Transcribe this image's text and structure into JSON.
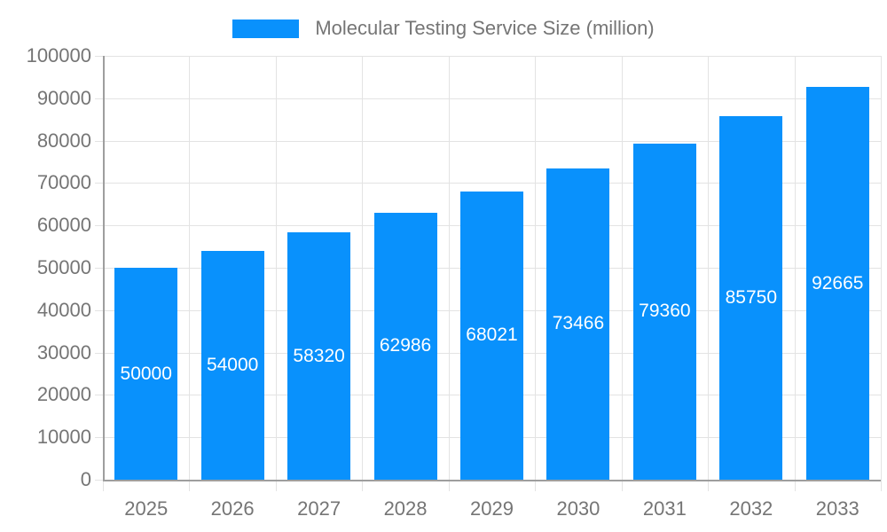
{
  "legend": {
    "label": "Molecular Testing Service Size (million)"
  },
  "chart_data": {
    "type": "bar",
    "title": "Molecular Testing Service Size (million)",
    "categories": [
      "2025",
      "2026",
      "2027",
      "2028",
      "2029",
      "2030",
      "2031",
      "2032",
      "2033"
    ],
    "values": [
      50000,
      54000,
      58320,
      62986,
      68021,
      73466,
      79360,
      85750,
      92665
    ],
    "xlabel": "",
    "ylabel": "",
    "ylim": [
      0,
      100000
    ],
    "ytick_step": 10000,
    "yticks": [
      0,
      10000,
      20000,
      30000,
      40000,
      50000,
      60000,
      70000,
      80000,
      90000,
      100000
    ],
    "grid": true,
    "legend_position": "top-center",
    "colors": {
      "bar": "#0991fc",
      "bar_label_text": "#ffffff",
      "axis_text": "#757575",
      "gridline": "#e3e3e3",
      "axis_line": "#9e9e9e",
      "background": "#ffffff"
    }
  }
}
